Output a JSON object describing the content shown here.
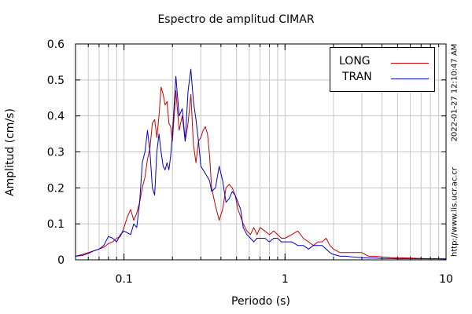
{
  "chart_data": {
    "type": "line",
    "title": "Espectro de amplitud CIMAR",
    "xlabel": "Periodo (s)",
    "ylabel": "Amplitud (cm/s)",
    "xscale": "log",
    "xlim": [
      0.05,
      10
    ],
    "ylim": [
      0,
      0.6
    ],
    "xticks": [
      0.1,
      1,
      10
    ],
    "xtick_labels": [
      "0.1",
      "1",
      "10"
    ],
    "yticks": [
      0,
      0.1,
      0.2,
      0.3,
      0.4,
      0.5,
      0.6
    ],
    "ytick_labels": [
      "0",
      "0.1",
      "0.2",
      "0.3",
      "0.4",
      "0.5",
      "0.6"
    ],
    "grid": true,
    "legend": "top-right",
    "series": [
      {
        "name": "LONG",
        "color": "#cc0000",
        "x": [
          0.05,
          0.055,
          0.06,
          0.065,
          0.07,
          0.075,
          0.08,
          0.085,
          0.09,
          0.095,
          0.1,
          0.105,
          0.11,
          0.115,
          0.12,
          0.125,
          0.13,
          0.135,
          0.14,
          0.145,
          0.15,
          0.155,
          0.16,
          0.165,
          0.17,
          0.175,
          0.18,
          0.185,
          0.19,
          0.195,
          0.2,
          0.21,
          0.22,
          0.23,
          0.24,
          0.25,
          0.26,
          0.27,
          0.28,
          0.29,
          0.3,
          0.31,
          0.32,
          0.33,
          0.34,
          0.35,
          0.37,
          0.39,
          0.41,
          0.43,
          0.45,
          0.47,
          0.49,
          0.51,
          0.53,
          0.55,
          0.58,
          0.61,
          0.64,
          0.67,
          0.7,
          0.75,
          0.8,
          0.85,
          0.9,
          0.95,
          1.0,
          1.1,
          1.2,
          1.3,
          1.4,
          1.5,
          1.6,
          1.7,
          1.8,
          1.9,
          2.0,
          2.2,
          2.4,
          2.6,
          2.8,
          3.0,
          3.3,
          3.6,
          4.0,
          4.5,
          5.0,
          6.0,
          7.0,
          8.0,
          9.0,
          10.0
        ],
        "values": [
          0.01,
          0.015,
          0.02,
          0.025,
          0.03,
          0.035,
          0.045,
          0.05,
          0.06,
          0.065,
          0.09,
          0.12,
          0.14,
          0.11,
          0.13,
          0.16,
          0.2,
          0.23,
          0.28,
          0.31,
          0.38,
          0.39,
          0.34,
          0.4,
          0.48,
          0.46,
          0.43,
          0.44,
          0.38,
          0.37,
          0.33,
          0.47,
          0.36,
          0.4,
          0.33,
          0.38,
          0.46,
          0.32,
          0.27,
          0.33,
          0.34,
          0.36,
          0.37,
          0.35,
          0.29,
          0.2,
          0.15,
          0.11,
          0.14,
          0.2,
          0.21,
          0.2,
          0.18,
          0.14,
          0.12,
          0.1,
          0.08,
          0.07,
          0.09,
          0.07,
          0.09,
          0.08,
          0.07,
          0.08,
          0.07,
          0.06,
          0.06,
          0.07,
          0.08,
          0.06,
          0.05,
          0.04,
          0.05,
          0.05,
          0.06,
          0.04,
          0.03,
          0.02,
          0.02,
          0.02,
          0.02,
          0.02,
          0.01,
          0.01,
          0.008,
          0.006,
          0.006,
          0.005,
          0.004,
          0.003,
          0.003,
          0.003
        ]
      },
      {
        "name": "TRAN",
        "color": "#0000cc",
        "x": [
          0.05,
          0.055,
          0.06,
          0.065,
          0.07,
          0.075,
          0.08,
          0.085,
          0.09,
          0.095,
          0.1,
          0.105,
          0.11,
          0.115,
          0.12,
          0.125,
          0.13,
          0.135,
          0.14,
          0.145,
          0.15,
          0.155,
          0.16,
          0.165,
          0.17,
          0.175,
          0.18,
          0.185,
          0.19,
          0.195,
          0.2,
          0.21,
          0.22,
          0.23,
          0.24,
          0.25,
          0.26,
          0.27,
          0.28,
          0.29,
          0.3,
          0.31,
          0.32,
          0.33,
          0.34,
          0.35,
          0.37,
          0.39,
          0.41,
          0.43,
          0.45,
          0.47,
          0.49,
          0.51,
          0.53,
          0.55,
          0.58,
          0.61,
          0.64,
          0.67,
          0.7,
          0.75,
          0.8,
          0.85,
          0.9,
          0.95,
          1.0,
          1.1,
          1.2,
          1.3,
          1.4,
          1.5,
          1.6,
          1.7,
          1.8,
          1.9,
          2.0,
          2.2,
          2.4,
          2.6,
          2.8,
          3.0,
          3.3,
          3.6,
          4.0,
          4.5,
          5.0,
          6.0,
          7.0,
          8.0,
          9.0,
          10.0
        ],
        "values": [
          0.01,
          0.012,
          0.018,
          0.025,
          0.03,
          0.04,
          0.065,
          0.06,
          0.05,
          0.07,
          0.08,
          0.075,
          0.07,
          0.1,
          0.09,
          0.16,
          0.27,
          0.3,
          0.36,
          0.3,
          0.2,
          0.18,
          0.3,
          0.35,
          0.3,
          0.26,
          0.25,
          0.27,
          0.25,
          0.29,
          0.35,
          0.51,
          0.4,
          0.42,
          0.33,
          0.47,
          0.53,
          0.44,
          0.39,
          0.33,
          0.26,
          0.25,
          0.24,
          0.23,
          0.22,
          0.19,
          0.2,
          0.26,
          0.22,
          0.16,
          0.17,
          0.19,
          0.18,
          0.16,
          0.14,
          0.09,
          0.07,
          0.06,
          0.05,
          0.06,
          0.06,
          0.06,
          0.05,
          0.06,
          0.06,
          0.05,
          0.05,
          0.05,
          0.04,
          0.04,
          0.03,
          0.04,
          0.04,
          0.04,
          0.03,
          0.02,
          0.015,
          0.01,
          0.01,
          0.008,
          0.007,
          0.006,
          0.005,
          0.005,
          0.004,
          0.004,
          0.003,
          0.003,
          0.003,
          0.003,
          0.003,
          0.002
        ]
      }
    ]
  },
  "stamp_date": "2022-01-27 12:10:47 AM",
  "stamp_url": "http://www.lis.ucr.ac.cr"
}
